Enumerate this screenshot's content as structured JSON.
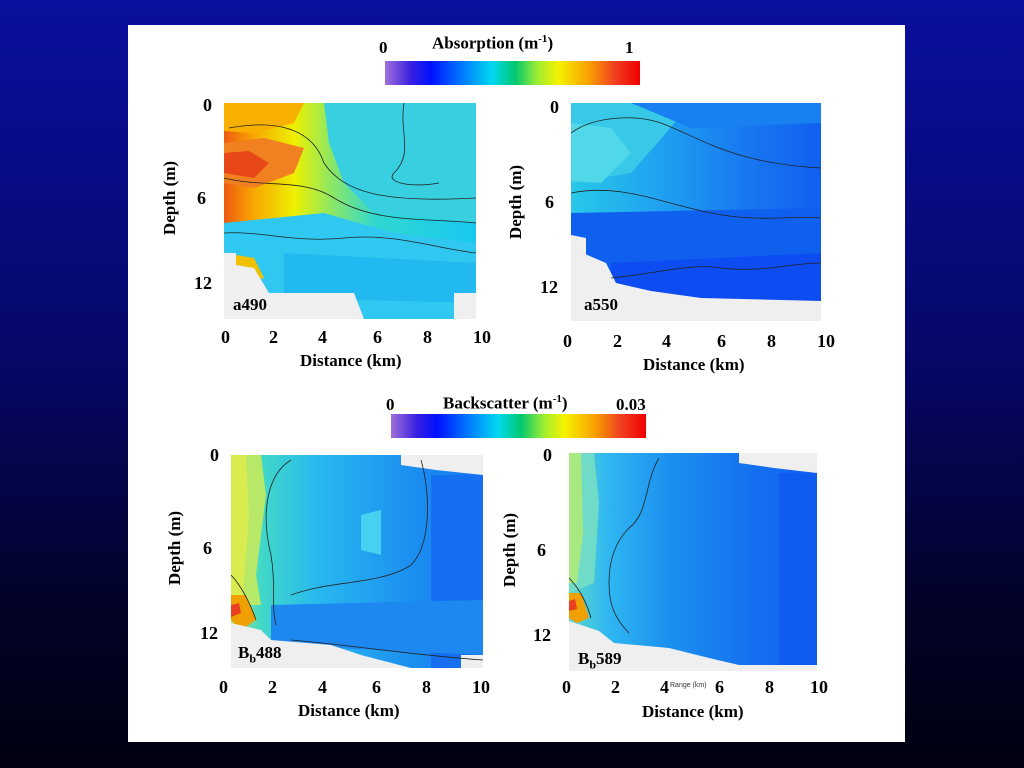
{
  "colorbars": {
    "absorption": {
      "min": "0",
      "max": "1",
      "title": "Absorption (m",
      "title_exp": "-1",
      "title_end": ")"
    },
    "backscatter": {
      "min": "0",
      "max": "0.03",
      "title": "Backscatter (m",
      "title_exp": "-1",
      "title_end": ")"
    }
  },
  "chart_data": [
    {
      "type": "heatmap",
      "panel": "a490",
      "xlabel": "Distance (km)",
      "ylabel": "Depth (m)",
      "xticks": [
        "0",
        "2",
        "4",
        "6",
        "8",
        "10"
      ],
      "yticks": [
        "0",
        "6",
        "12"
      ],
      "xlim": [
        0,
        10
      ],
      "ylim": [
        0,
        14
      ],
      "color_scale": "Absorption (m-1)",
      "vmin": 0,
      "vmax": 1,
      "x": [
        0,
        2,
        4,
        6,
        8,
        10
      ],
      "y": [
        0,
        3,
        6,
        9,
        12
      ],
      "z": [
        [
          0.75,
          0.65,
          0.55,
          0.5,
          0.45,
          0.42
        ],
        [
          0.92,
          0.7,
          0.5,
          0.42,
          0.4,
          0.4
        ],
        [
          0.7,
          0.5,
          0.42,
          0.4,
          0.4,
          0.38
        ],
        [
          0.55,
          0.4,
          0.35,
          0.33,
          0.33,
          0.32
        ],
        [
          0.3,
          0.3,
          0.3,
          0.3,
          0.3,
          0.3
        ]
      ]
    },
    {
      "type": "heatmap",
      "panel": "a550",
      "xlabel": "Distance (km)",
      "ylabel": "Depth (m)",
      "xticks": [
        "0",
        "2",
        "4",
        "6",
        "8",
        "10"
      ],
      "yticks": [
        "0",
        "6",
        "12"
      ],
      "xlim": [
        0,
        10
      ],
      "ylim": [
        0,
        14
      ],
      "color_scale": "Absorption (m-1)",
      "vmin": 0,
      "vmax": 1,
      "x": [
        0,
        2,
        4,
        6,
        8,
        10
      ],
      "y": [
        0,
        3,
        6,
        9,
        12
      ],
      "z": [
        [
          0.28,
          0.3,
          0.3,
          0.25,
          0.22,
          0.2
        ],
        [
          0.38,
          0.32,
          0.27,
          0.23,
          0.2,
          0.2
        ],
        [
          0.3,
          0.24,
          0.2,
          0.18,
          0.18,
          0.18
        ],
        [
          0.2,
          0.17,
          0.15,
          0.15,
          0.15,
          0.15
        ],
        [
          0.14,
          0.13,
          0.12,
          0.12,
          0.12,
          0.12
        ]
      ]
    },
    {
      "type": "heatmap",
      "panel": "Bb488",
      "xlabel": "Distance (km)",
      "ylabel": "Depth (m)",
      "xticks": [
        "0",
        "2",
        "4",
        "6",
        "8",
        "10"
      ],
      "yticks": [
        "0",
        "6",
        "12"
      ],
      "xlim": [
        0,
        10
      ],
      "ylim": [
        0,
        14
      ],
      "color_scale": "Backscatter (m-1)",
      "vmin": 0,
      "vmax": 0.03,
      "x": [
        0,
        2,
        4,
        6,
        8,
        10
      ],
      "y": [
        0,
        3,
        6,
        9,
        12
      ],
      "z": [
        [
          0.018,
          0.013,
          0.011,
          0.01,
          0.009,
          0.009
        ],
        [
          0.016,
          0.011,
          0.01,
          0.009,
          0.008,
          0.008
        ],
        [
          0.014,
          0.011,
          0.01,
          0.009,
          0.008,
          0.008
        ],
        [
          0.015,
          0.01,
          0.009,
          0.008,
          0.008,
          0.008
        ],
        [
          0.027,
          0.01,
          0.009,
          0.008,
          0.007,
          0.007
        ]
      ]
    },
    {
      "type": "heatmap",
      "panel": "Bb589",
      "xlabel": "Distance (km)",
      "ylabel": "Depth (m)",
      "xticks": [
        "0",
        "2",
        "4",
        "6",
        "8",
        "10"
      ],
      "yticks": [
        "0",
        "6",
        "12"
      ],
      "xlim": [
        0,
        10
      ],
      "ylim": [
        0,
        14
      ],
      "color_scale": "Backscatter (m-1)",
      "vmin": 0,
      "vmax": 0.03,
      "x": [
        0,
        2,
        4,
        6,
        8,
        10
      ],
      "y": [
        0,
        3,
        6,
        9,
        12
      ],
      "z": [
        [
          0.015,
          0.011,
          0.009,
          0.008,
          0.007,
          0.007
        ],
        [
          0.014,
          0.01,
          0.008,
          0.007,
          0.007,
          0.006
        ],
        [
          0.012,
          0.009,
          0.008,
          0.007,
          0.006,
          0.006
        ],
        [
          0.013,
          0.009,
          0.008,
          0.007,
          0.006,
          0.006
        ],
        [
          0.025,
          0.009,
          0.008,
          0.007,
          0.006,
          0.006
        ]
      ]
    }
  ],
  "panels": [
    {
      "tag": "a490",
      "tag_sub": "",
      "tag_end": "",
      "xlabel": "Distance (km)",
      "ylabel": "Depth (m)"
    },
    {
      "tag": "a550",
      "tag_sub": "",
      "tag_end": "",
      "xlabel": "Distance (km)",
      "ylabel": "Depth (m)"
    },
    {
      "tag": "B",
      "tag_sub": "b",
      "tag_end": "488",
      "xlabel": "Distance (km)",
      "ylabel": "Depth (m)"
    },
    {
      "tag": "B",
      "tag_sub": "b",
      "tag_end": "589",
      "xlabel": "Distance (km)",
      "ylabel": "Depth (m)",
      "inner_caption": "Range (km)"
    }
  ]
}
